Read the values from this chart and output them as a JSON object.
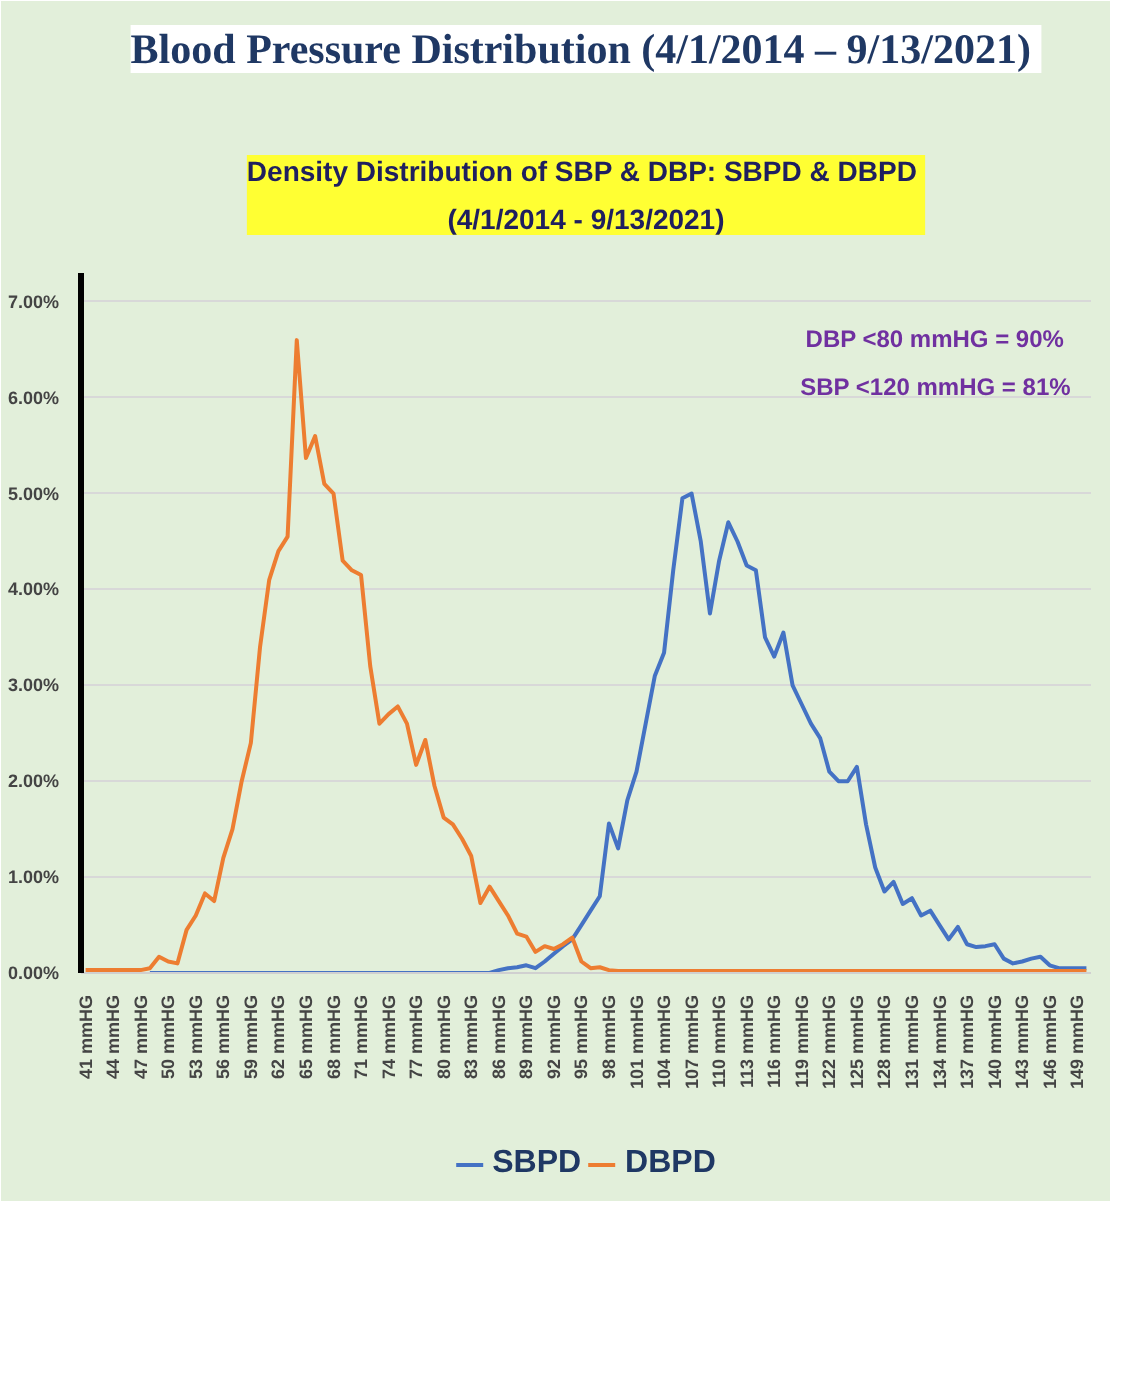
{
  "chart_data": {
    "type": "line",
    "title": "Blood Pressure Distribution  (4/1/2014 – 9/13/2021)",
    "subtitle": "Density Distribution of SBP & DBP:  SBPD & DBPD\n(4/1/2014 - 9/13/2021)",
    "annotations": [
      "DBP <80 mmHG  = 90%",
      "SBP <120 mmHG = 81%"
    ],
    "categories": [
      "41 mmHG",
      null,
      null,
      "44 mmHG",
      null,
      null,
      "47 mmHG",
      null,
      null,
      "50 mmHG",
      null,
      null,
      "53 mmHG",
      null,
      null,
      "56 mmHG",
      null,
      null,
      "59 mmHG",
      null,
      null,
      "62 mmHG",
      null,
      null,
      "65 mmHG",
      null,
      null,
      "68 mmHG",
      null,
      null,
      "71 mmHG",
      null,
      null,
      "74 mmHG",
      null,
      null,
      "77 mmHG",
      null,
      null,
      "80 mmHG",
      null,
      null,
      "83 mmHG",
      null,
      null,
      "86 mmHG",
      null,
      null,
      "89 mmHG",
      null,
      null,
      "92 mmHG",
      null,
      null,
      "95 mmHG",
      null,
      null,
      "98 mmHG",
      null,
      null,
      "101 mmHG",
      null,
      null,
      "104 mmHG",
      null,
      null,
      "107 mmHG",
      null,
      null,
      "110 mmHG",
      null,
      null,
      "113 mmHG",
      null,
      null,
      "116 mmHG",
      null,
      null,
      "119 mmHG",
      null,
      null,
      "122 mmHG",
      null,
      null,
      "125 mmHG",
      null,
      null,
      "128 mmHG",
      null,
      null,
      "131 mmHG",
      null,
      null,
      "134 mmHG",
      null,
      null,
      "137 mmHG",
      null,
      null,
      "140 mmHG",
      null,
      null,
      "143 mmHG",
      null,
      null,
      "146 mmHG",
      null,
      null,
      "149 mmHG",
      null
    ],
    "series": [
      {
        "name": "SBPD",
        "color": "#4472c4",
        "values": [
          null,
          null,
          null,
          null,
          null,
          null,
          null,
          0,
          0,
          0,
          0,
          0,
          0,
          0,
          0,
          0,
          0,
          0,
          0,
          0,
          0,
          0,
          0,
          0,
          0,
          0,
          0,
          0,
          0,
          0,
          0,
          0,
          0,
          0,
          0,
          0,
          0,
          0,
          0,
          0,
          0,
          0,
          0,
          0,
          0,
          0.03,
          0.05,
          0.06,
          0.08,
          0.05,
          0.12,
          0.2,
          0.28,
          0.35,
          0.5,
          0.65,
          0.8,
          1.56,
          1.3,
          1.8,
          2.1,
          2.6,
          3.1,
          3.34,
          4.2,
          4.95,
          5.0,
          4.5,
          3.75,
          4.3,
          4.7,
          4.5,
          4.25,
          4.2,
          3.5,
          3.3,
          3.55,
          3.0,
          2.8,
          2.6,
          2.45,
          2.1,
          2.0,
          2.0,
          2.15,
          1.55,
          1.1,
          0.85,
          0.95,
          0.72,
          0.78,
          0.6,
          0.65,
          0.5,
          0.35,
          0.48,
          0.3,
          0.27,
          0.28,
          0.3,
          0.15,
          0.1,
          0.12,
          0.15,
          0.17,
          0.08,
          0.05,
          0.05,
          0.05,
          0.05
        ]
      },
      {
        "name": "DBPD",
        "color": "#ed7d31",
        "values": [
          0.03,
          0.03,
          0.03,
          0.03,
          0.03,
          0.03,
          0.03,
          0.05,
          0.17,
          0.12,
          0.1,
          0.45,
          0.6,
          0.83,
          0.75,
          1.2,
          1.5,
          2.0,
          2.4,
          3.4,
          4.1,
          4.4,
          4.55,
          6.6,
          5.37,
          5.6,
          5.1,
          5.0,
          4.3,
          4.2,
          4.15,
          3.2,
          2.6,
          2.7,
          2.78,
          2.6,
          2.17,
          2.43,
          1.95,
          1.62,
          1.55,
          1.4,
          1.22,
          0.73,
          0.9,
          0.75,
          0.6,
          0.41,
          0.38,
          0.22,
          0.28,
          0.25,
          0.3,
          0.37,
          0.12,
          0.05,
          0.06,
          0.03,
          0.02,
          0.02,
          0.02,
          0.02,
          0.02,
          0.02,
          0.02,
          0.02,
          0.02,
          0.02,
          0.02,
          0.02,
          0.02,
          0.02,
          0.02,
          0.02,
          0.02,
          0.02,
          0.02,
          0.02,
          0.02,
          0.02,
          0.02,
          0.02,
          0.02,
          0.02,
          0.02,
          0.02,
          0.02,
          0.02,
          0.02,
          0.02,
          0.02,
          0.02,
          0.02,
          0.02,
          0.02,
          0.02,
          0.02,
          0.02,
          0.02,
          0.02,
          0.02,
          0.02,
          0.02,
          0.02,
          0.02,
          0.02,
          0.02,
          0.02,
          0.02,
          0.02
        ]
      }
    ],
    "ylim": [
      0,
      7.3
    ],
    "yticks": [
      {
        "value": 0,
        "label": "0.00%"
      },
      {
        "value": 1,
        "label": "1.00%"
      },
      {
        "value": 2,
        "label": "2.00%"
      },
      {
        "value": 3,
        "label": "3.00%"
      },
      {
        "value": 4,
        "label": "4.00%"
      },
      {
        "value": 5,
        "label": "5.00%"
      },
      {
        "value": 6,
        "label": "6.00%"
      },
      {
        "value": 7,
        "label": "7.00%"
      }
    ],
    "grid": "y",
    "legend": "bottom",
    "marker": "none",
    "line_style": "solid"
  }
}
